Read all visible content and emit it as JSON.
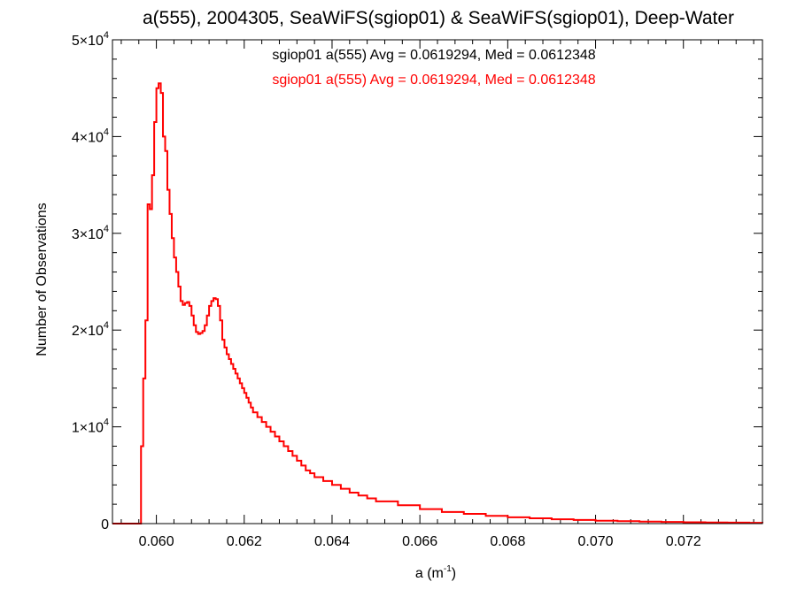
{
  "colors": {
    "axis": "#000000",
    "series1": "#000000",
    "series2": "#ff0000",
    "background": "#ffffff"
  },
  "chart_data": {
    "type": "line",
    "style": "step",
    "title": "a(555), 2004305, SeaWiFS(sgiop01) & SeaWiFS(sgiop01), Deep-Water",
    "xlabel": "a (m⁻¹)",
    "ylabel": "Number of Observations",
    "xlim": [
      0.059,
      0.0738
    ],
    "ylim": [
      0,
      50000
    ],
    "x_ticks": [
      0.06,
      0.062,
      0.064,
      0.066,
      0.068,
      0.07,
      0.072
    ],
    "x_tick_labels": [
      "0.060",
      "0.062",
      "0.064",
      "0.066",
      "0.068",
      "0.070",
      "0.072"
    ],
    "y_ticks": [
      0,
      10000,
      20000,
      30000,
      40000,
      50000
    ],
    "y_tick_labels": [
      {
        "base": "0",
        "exp": ""
      },
      {
        "base": "1×10",
        "exp": "4"
      },
      {
        "base": "2×10",
        "exp": "4"
      },
      {
        "base": "3×10",
        "exp": "4"
      },
      {
        "base": "4×10",
        "exp": "4"
      },
      {
        "base": "5×10",
        "exp": "4"
      }
    ],
    "legend": [
      {
        "text": "sgiop01 a(555) Avg = 0.0619294, Med = 0.0612348",
        "color": "#000000"
      },
      {
        "text": "sgiop01 a(555) Avg = 0.0619294, Med = 0.0612348",
        "color": "#ff0000"
      }
    ],
    "legend_position": "top-center",
    "series": [
      {
        "color": "#ff0000",
        "x": [
          0.059,
          0.05955,
          0.05965,
          0.0597,
          0.05975,
          0.0598,
          0.05985,
          0.0599,
          0.05995,
          0.06,
          0.06005,
          0.0601,
          0.06015,
          0.0602,
          0.06025,
          0.0603,
          0.06035,
          0.0604,
          0.06045,
          0.0605,
          0.06055,
          0.0606,
          0.06065,
          0.0607,
          0.06075,
          0.0608,
          0.06085,
          0.0609,
          0.06095,
          0.061,
          0.06105,
          0.0611,
          0.06115,
          0.0612,
          0.06125,
          0.0613,
          0.06135,
          0.0614,
          0.06145,
          0.0615,
          0.06155,
          0.0616,
          0.06165,
          0.0617,
          0.06175,
          0.0618,
          0.06185,
          0.0619,
          0.06195,
          0.062,
          0.06205,
          0.0621,
          0.06215,
          0.0622,
          0.0623,
          0.0624,
          0.0625,
          0.0626,
          0.0627,
          0.0628,
          0.0629,
          0.063,
          0.0631,
          0.0632,
          0.0633,
          0.0634,
          0.0635,
          0.0636,
          0.0638,
          0.064,
          0.0642,
          0.0644,
          0.0646,
          0.0648,
          0.065,
          0.0655,
          0.066,
          0.0665,
          0.067,
          0.0675,
          0.068,
          0.0685,
          0.069,
          0.0695,
          0.07,
          0.0705,
          0.071,
          0.0715,
          0.072,
          0.0725,
          0.073,
          0.0735,
          0.0738
        ],
        "y": [
          0,
          0,
          8000,
          15000,
          21000,
          33000,
          32500,
          36000,
          41500,
          45000,
          45500,
          44500,
          40000,
          38500,
          34500,
          32000,
          29500,
          27500,
          26000,
          24500,
          23000,
          22600,
          22800,
          22900,
          22500,
          21500,
          20500,
          19800,
          19600,
          19700,
          19900,
          20500,
          21500,
          22500,
          23000,
          23300,
          23200,
          22500,
          21000,
          19000,
          18200,
          17500,
          17000,
          16500,
          16000,
          15500,
          15000,
          14500,
          14000,
          13500,
          13000,
          12500,
          12000,
          11500,
          11000,
          10500,
          10000,
          9500,
          9000,
          8500,
          8000,
          7500,
          7000,
          6500,
          6000,
          5500,
          5200,
          4800,
          4400,
          4000,
          3600,
          3200,
          2900,
          2600,
          2300,
          1900,
          1500,
          1200,
          1000,
          800,
          650,
          550,
          450,
          380,
          300,
          250,
          200,
          170,
          140,
          120,
          100,
          80,
          60
        ]
      }
    ]
  }
}
